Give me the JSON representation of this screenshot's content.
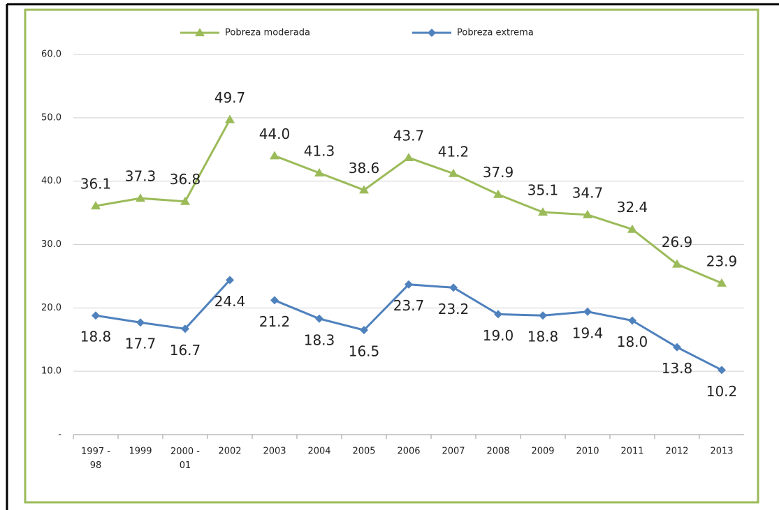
{
  "chart_data": {
    "type": "line",
    "categories": [
      "1997 - 98",
      "1999",
      "2000 - 01",
      "2002",
      "2003",
      "2004",
      "2005",
      "2006",
      "2007",
      "2008",
      "2009",
      "2010",
      "2011",
      "2012",
      "2013"
    ],
    "breaks": [
      4
    ],
    "series": [
      {
        "name": "Pobreza moderada",
        "color": "#9bbb59",
        "marker": "triangle",
        "values": [
          36.1,
          37.3,
          36.8,
          49.7,
          44.0,
          41.3,
          38.6,
          43.7,
          41.2,
          37.9,
          35.1,
          34.7,
          32.4,
          26.9,
          23.9
        ],
        "value_labels": [
          "36.1",
          "37.3",
          "36.8",
          "49.7",
          "44.0",
          "41.3",
          "38.6",
          "43.7",
          "41.2",
          "37.9",
          "35.1",
          "34.7",
          "32.4",
          "26.9",
          "23.9"
        ]
      },
      {
        "name": "Pobreza extrema",
        "color": "#4f81bd",
        "marker": "diamond",
        "values": [
          18.8,
          17.7,
          16.7,
          24.4,
          21.2,
          18.3,
          16.5,
          23.7,
          23.2,
          19.0,
          18.8,
          19.4,
          18.0,
          13.8,
          10.2
        ],
        "value_labels": [
          "18.8",
          "17.7",
          "16.7",
          "24.4",
          "21.2",
          "18.3",
          "16.5",
          "23.7",
          "23.2",
          "19.0",
          "18.8",
          "19.4",
          "18.0",
          "13.8",
          "10.2"
        ]
      }
    ],
    "ylim": [
      0,
      60
    ],
    "yticks": [
      {
        "value": 0,
        "label": "-"
      },
      {
        "value": 10,
        "label": "10.0"
      },
      {
        "value": 20,
        "label": "20.0"
      },
      {
        "value": 30,
        "label": "30.0"
      },
      {
        "value": 40,
        "label": "40.0"
      },
      {
        "value": 50,
        "label": "50.0"
      },
      {
        "value": 60,
        "label": "60.0"
      }
    ],
    "grid": true
  }
}
